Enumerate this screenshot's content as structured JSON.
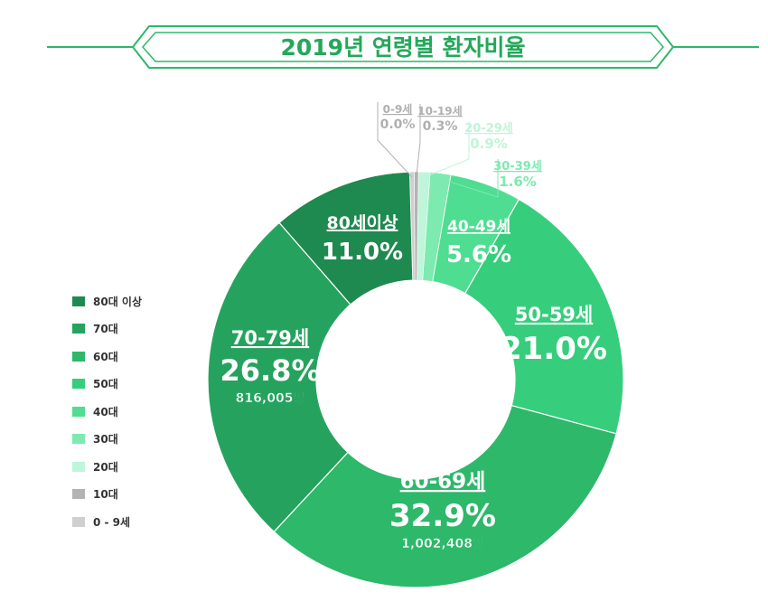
{
  "chart_data": {
    "type": "pie",
    "title": "2019년 연령별 환자비율",
    "style": "donut",
    "legend_position": "left",
    "slices": [
      {
        "label": "80세이상",
        "value": 11.0,
        "percent_text": "11.0%",
        "count_text": "",
        "legend": "80대 이상",
        "color": "#1e8a4f"
      },
      {
        "label": "70-79세",
        "value": 26.8,
        "percent_text": "26.8%",
        "count_text": "816,005명",
        "legend": "70대",
        "color": "#25a35e"
      },
      {
        "label": "60-69세",
        "value": 32.9,
        "percent_text": "32.9%",
        "count_text": "1,002,408명",
        "legend": "60대",
        "color": "#2db86a"
      },
      {
        "label": "50-59세",
        "value": 21.0,
        "percent_text": "21.0%",
        "count_text": "",
        "legend": "50대",
        "color": "#36ce7c"
      },
      {
        "label": "40-49세",
        "value": 5.6,
        "percent_text": "5.6%",
        "count_text": "",
        "legend": "40대",
        "color": "#4fdd91"
      },
      {
        "label": "30-39세",
        "value": 1.6,
        "percent_text": "1.6%",
        "count_text": "",
        "legend": "30대",
        "color": "#7deab0"
      },
      {
        "label": "20-29세",
        "value": 0.9,
        "percent_text": "0.9%",
        "count_text": "",
        "legend": "20대",
        "color": "#bff5d8"
      },
      {
        "label": "10-19세",
        "value": 0.3,
        "percent_text": "0.3%",
        "count_text": "",
        "legend": "10대",
        "color": "#b3b3b3"
      },
      {
        "label": "0-9세",
        "value": 0.0,
        "percent_text": "0.0%",
        "count_text": "",
        "legend": "0 - 9세",
        "color": "#cfcfcf"
      }
    ]
  }
}
